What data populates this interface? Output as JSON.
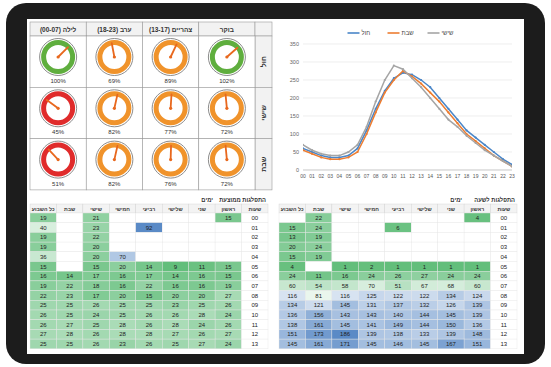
{
  "chart_data": [
    {
      "type": "gauge",
      "ylim": [
        0,
        150
      ],
      "columns": [
        "לילה (00-07)",
        "ערב (18-23)",
        "צהריים (13-17)",
        "בוקר"
      ],
      "rows": [
        {
          "label": "חול",
          "values": [
            100,
            69,
            89,
            102
          ],
          "value_labels": [
            "100%",
            "69%",
            "89%",
            "102%"
          ],
          "colors": [
            "#5fae3e",
            "#f0932b",
            "#f0932b",
            "#5fae3e"
          ]
        },
        {
          "label": "שישי",
          "values": [
            45,
            82,
            77,
            72
          ],
          "value_labels": [
            "45%",
            "82%",
            "77%",
            "72%"
          ],
          "colors": [
            "#e02b2b",
            "#f0932b",
            "#f0932b",
            "#f0932b"
          ]
        },
        {
          "label": "שבת",
          "values": [
            51,
            82,
            76,
            72
          ],
          "value_labels": [
            "51%",
            "82%",
            "76%",
            "72%"
          ],
          "colors": [
            "#e02b2b",
            "#f0932b",
            "#f0932b",
            "#f0932b"
          ]
        }
      ]
    },
    {
      "type": "line",
      "legend": "top",
      "grid": true,
      "categories": [
        "00",
        "01",
        "02",
        "03",
        "04",
        "05",
        "06",
        "07",
        "08",
        "09",
        "10",
        "11",
        "12",
        "13",
        "14",
        "15",
        "16",
        "17",
        "18",
        "19",
        "20",
        "21",
        "22",
        "23"
      ],
      "series": [
        {
          "name": "חול",
          "color": "#4a86c8",
          "values": [
            60,
            50,
            40,
            35,
            35,
            40,
            60,
            110,
            170,
            220,
            255,
            270,
            265,
            250,
            230,
            200,
            170,
            140,
            110,
            90,
            70,
            50,
            30,
            15
          ]
        },
        {
          "name": "שבת",
          "color": "#ed7d31",
          "values": [
            55,
            45,
            35,
            30,
            30,
            35,
            50,
            100,
            160,
            215,
            250,
            275,
            260,
            240,
            215,
            190,
            160,
            130,
            100,
            80,
            60,
            40,
            25,
            10
          ]
        },
        {
          "name": "שישי",
          "color": "#a5a5a5",
          "values": [
            70,
            55,
            45,
            40,
            40,
            50,
            70,
            120,
            190,
            250,
            290,
            280,
            255,
            230,
            200,
            170,
            140,
            120,
            95,
            75,
            55,
            40,
            25,
            10
          ]
        }
      ],
      "ylim": [
        0,
        350
      ],
      "yticks": [
        0,
        50,
        100,
        150,
        200,
        250,
        300,
        350
      ]
    }
  ],
  "tables": [
    {
      "title": "התפלגות ממוצעת",
      "group_label": "ימים",
      "columns": [
        "כל השבוע",
        "שבת",
        "שישי",
        "חמישי",
        "רביעי",
        "שלישי",
        "שני",
        "ראשון",
        "שעות"
      ],
      "rows": [
        {
          "hour": "00",
          "values": [
            19,
            null,
            21,
            null,
            null,
            null,
            null,
            15
          ]
        },
        {
          "hour": "01",
          "values": [
            40,
            null,
            23,
            null,
            92,
            null,
            null,
            null
          ]
        },
        {
          "hour": "02",
          "values": [
            19,
            null,
            22,
            null,
            null,
            null,
            null,
            null
          ]
        },
        {
          "hour": "03",
          "values": [
            19,
            null,
            20,
            null,
            null,
            null,
            null,
            null
          ]
        },
        {
          "hour": "04",
          "values": [
            36,
            null,
            20,
            70,
            null,
            null,
            null,
            null
          ]
        },
        {
          "hour": "05",
          "values": [
            15,
            null,
            15,
            20,
            14,
            9,
            11,
            15
          ]
        },
        {
          "hour": "06",
          "values": [
            16,
            14,
            17,
            16,
            17,
            14,
            16,
            15
          ]
        },
        {
          "hour": "07",
          "values": [
            19,
            22,
            18,
            16,
            22,
            16,
            16,
            19
          ]
        },
        {
          "hour": "08",
          "values": [
            22,
            23,
            17,
            20,
            15,
            20,
            20,
            27
          ]
        },
        {
          "hour": "09",
          "values": [
            25,
            25,
            26,
            25,
            25,
            23,
            25,
            26
          ]
        },
        {
          "hour": "10",
          "values": [
            26,
            25,
            24,
            25,
            26,
            26,
            28,
            24
          ]
        },
        {
          "hour": "11",
          "values": [
            26,
            27,
            25,
            28,
            26,
            28,
            24,
            26
          ]
        },
        {
          "hour": "12",
          "values": [
            27,
            28,
            26,
            28,
            28,
            27,
            26,
            27
          ]
        },
        {
          "hour": "13",
          "values": [
            25,
            25,
            26,
            23,
            26,
            25,
            27,
            24
          ]
        }
      ]
    },
    {
      "title": "התפלגות לשעה",
      "group_label": "ימים",
      "columns": [
        "כל השבוע",
        "שבת",
        "שישי",
        "חמישי",
        "רביעי",
        "שלישי",
        "שני",
        "ראשון",
        "שעות"
      ],
      "rows": [
        {
          "hour": "00",
          "values": [
            null,
            22,
            null,
            null,
            null,
            null,
            null,
            4
          ]
        },
        {
          "hour": "01",
          "values": [
            15,
            24,
            null,
            null,
            6,
            null,
            null,
            null
          ]
        },
        {
          "hour": "02",
          "values": [
            13,
            19,
            null,
            null,
            null,
            null,
            null,
            null
          ]
        },
        {
          "hour": "03",
          "values": [
            20,
            24,
            null,
            null,
            null,
            null,
            null,
            null
          ]
        },
        {
          "hour": "04",
          "values": [
            15,
            19,
            null,
            null,
            null,
            null,
            null,
            null
          ]
        },
        {
          "hour": "05",
          "values": [
            4,
            null,
            1,
            2,
            1,
            1,
            1,
            1
          ]
        },
        {
          "hour": "06",
          "values": [
            24,
            11,
            16,
            24,
            26,
            27,
            24,
            24
          ]
        },
        {
          "hour": "07",
          "values": [
            60,
            54,
            58,
            70,
            51,
            67,
            68,
            60
          ]
        },
        {
          "hour": "08",
          "values": [
            116,
            81,
            116,
            125,
            122,
            122,
            134,
            124
          ]
        },
        {
          "hour": "09",
          "values": [
            134,
            121,
            145,
            131,
            137,
            132,
            126,
            139
          ]
        },
        {
          "hour": "10",
          "values": [
            136,
            156,
            143,
            143,
            140,
            144,
            145,
            139
          ]
        },
        {
          "hour": "11",
          "values": [
            138,
            161,
            145,
            141,
            149,
            144,
            150,
            136
          ]
        },
        {
          "hour": "12",
          "values": [
            151,
            173,
            186,
            139,
            138,
            133,
            139,
            148
          ]
        },
        {
          "hour": "13",
          "values": [
            145,
            161,
            171,
            145,
            146,
            145,
            167,
            151
          ]
        }
      ]
    }
  ]
}
